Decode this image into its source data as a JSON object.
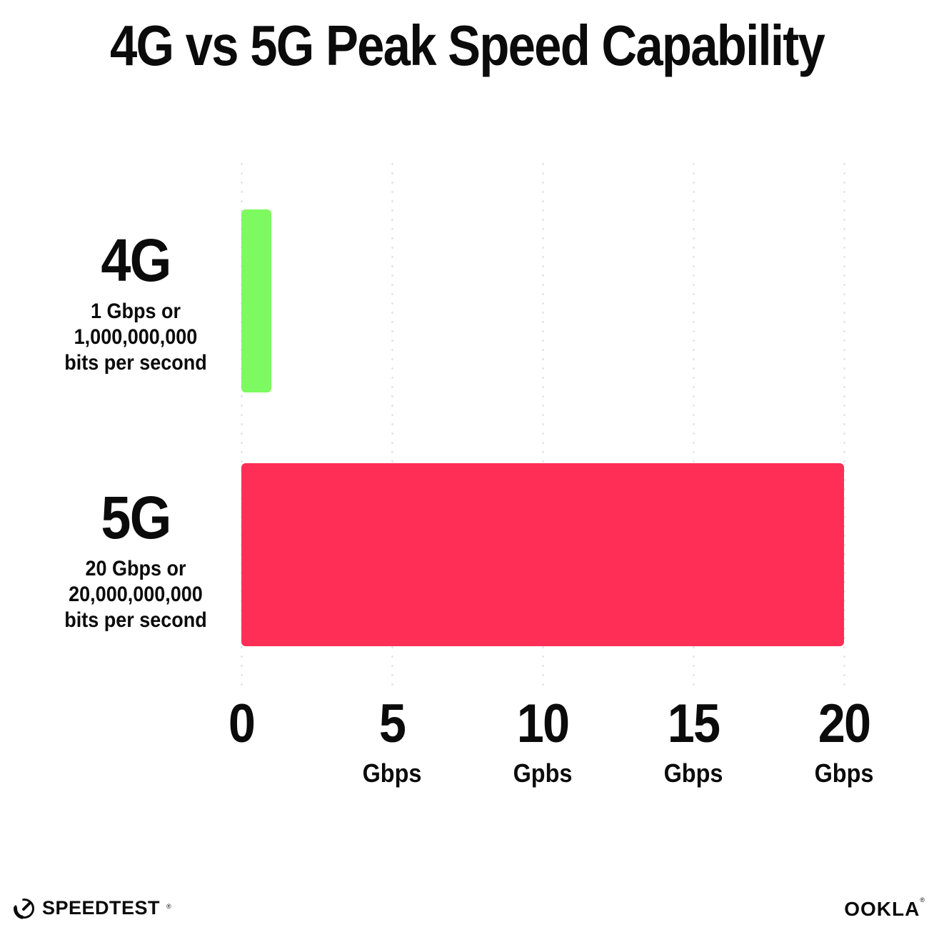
{
  "title": "4G vs 5G Peak Speed Capability",
  "chart_data": {
    "type": "bar",
    "orientation": "horizontal",
    "title": "4G vs 5G Peak Speed Capability",
    "categories": [
      "4G",
      "5G"
    ],
    "values": [
      1,
      20
    ],
    "value_unit": "Gbps",
    "xlim": [
      0,
      20
    ],
    "grid": "vertical-dotted",
    "grid_color": "#e2e3ed",
    "bars": [
      {
        "label": "4G",
        "sublabel_lines": [
          "1 Gbps or",
          "1,000,000,000",
          "bits per second"
        ],
        "value_gbps": 1,
        "color": "#7cfa5f"
      },
      {
        "label": "5G",
        "sublabel_lines": [
          "20 Gbps or",
          "20,000,000,000",
          "bits per second"
        ],
        "value_gbps": 20,
        "color": "#ff2e56"
      }
    ],
    "x_ticks": [
      {
        "value": 0,
        "number": "0",
        "unit": ""
      },
      {
        "value": 5,
        "number": "5",
        "unit": "Gbps"
      },
      {
        "value": 10,
        "number": "10",
        "unit": "Gpbs"
      },
      {
        "value": 15,
        "number": "15",
        "unit": "Gbps"
      },
      {
        "value": 20,
        "number": "20",
        "unit": "Gbps"
      }
    ]
  },
  "footer": {
    "speedtest_label": "SPEEDTEST",
    "speedtest_reg": "®",
    "ookla_label": "OOKLA",
    "ookla_reg": "®"
  },
  "colors": {
    "background": "#ffffff",
    "text": "#0b0b0b",
    "bar_4g": "#7cfa5f",
    "bar_5g": "#ff2e56",
    "gridline": "#e2e3ed"
  }
}
